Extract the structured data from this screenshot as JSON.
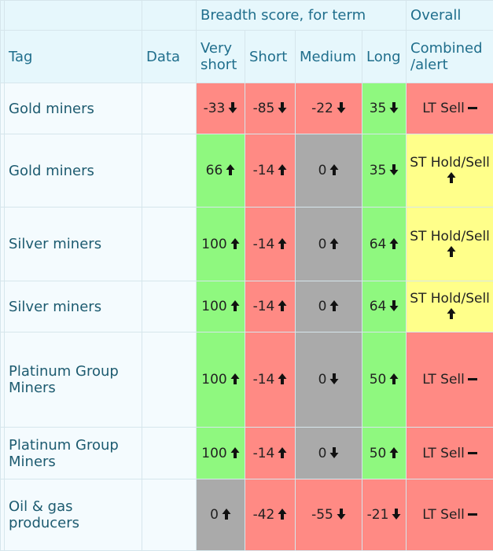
{
  "header": {
    "group": "Breadth score, for term",
    "overall": "Overall",
    "columns": [
      "Tag",
      "Data",
      "Very short",
      "Short",
      "Medium",
      "Long",
      "Combined /alert"
    ]
  },
  "rows": [
    [
      "Gold miners",
      -33,
      -85,
      -22,
      35,
      "LT Sell"
    ],
    [
      "Gold miners",
      66,
      -14,
      0,
      35,
      "ST Hold/Sell"
    ],
    [
      "Silver miners",
      100,
      -14,
      0,
      64,
      "ST Hold/Sell"
    ],
    [
      "Silver miners",
      100,
      -14,
      0,
      64,
      "ST Hold/Sell"
    ],
    [
      "Platinum Group Miners",
      100,
      -14,
      0,
      50,
      "LT Sell"
    ],
    [
      "Platinum Group Miners",
      100,
      -14,
      0,
      50,
      "LT Sell"
    ],
    [
      "Oil & gas producers",
      0,
      -42,
      -55,
      -21,
      "LT Sell"
    ]
  ]
}
